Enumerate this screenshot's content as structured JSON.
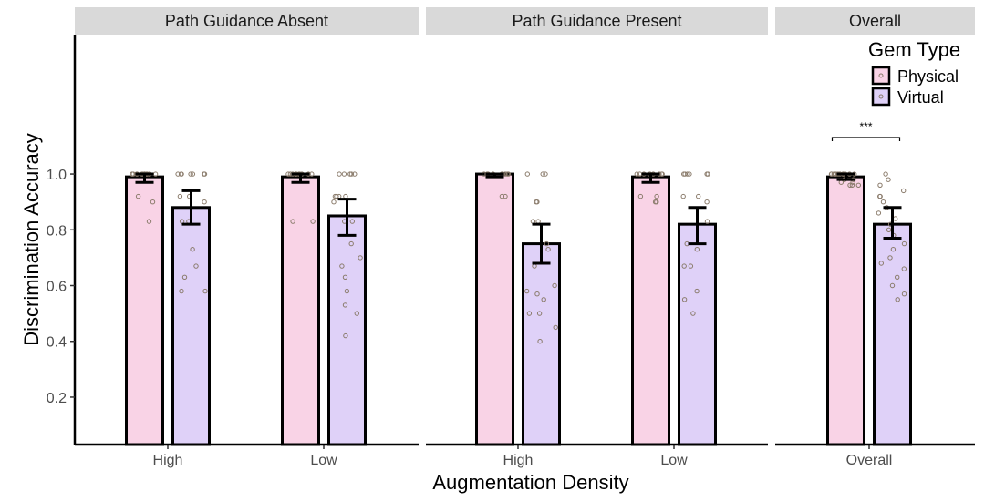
{
  "chart_data": {
    "type": "bar",
    "ylabel": "Discrimination Accuracy",
    "xlabel": "Augmentation Density",
    "ylim": [
      0.03,
      1.5
    ],
    "yticks": [
      "0.2",
      "0.4",
      "0.6",
      "0.8",
      "1.0"
    ],
    "legend": {
      "title": "Gem Type",
      "position": "top-right",
      "entries": [
        {
          "name": "Physical",
          "color": "#f9d3e6"
        },
        {
          "name": "Virtual",
          "color": "#dfd1f8"
        }
      ]
    },
    "panels": [
      {
        "strip": "Path Guidance Absent",
        "categories": [
          "High",
          "Low"
        ],
        "series": [
          {
            "name": "Physical",
            "values": [
              0.99,
              0.99
            ],
            "err_low": [
              0.97,
              0.97
            ],
            "err_high": [
              1.0,
              1.0
            ]
          },
          {
            "name": "Virtual",
            "values": [
              0.88,
              0.85
            ],
            "err_low": [
              0.82,
              0.78
            ],
            "err_high": [
              0.94,
              0.91
            ]
          }
        ],
        "points": {
          "Physical": [
            [
              1.0,
              1.0,
              1.0,
              1.0,
              1.0,
              1.0,
              1.0,
              1.0,
              1.0,
              1.0,
              0.92,
              0.9,
              0.83,
              1.0,
              1.0,
              1.0,
              1.0
            ],
            [
              1.0,
              1.0,
              1.0,
              1.0,
              1.0,
              1.0,
              1.0,
              1.0,
              1.0,
              0.83,
              0.83,
              1.0,
              1.0
            ]
          ],
          "Virtual": [
            [
              1.0,
              1.0,
              1.0,
              1.0,
              1.0,
              1.0,
              1.0,
              0.92,
              0.92,
              0.9,
              0.83,
              0.83,
              0.73,
              0.67,
              0.63,
              0.58,
              0.58
            ],
            [
              1.0,
              1.0,
              1.0,
              1.0,
              1.0,
              0.92,
              0.92,
              0.92,
              0.92,
              0.9,
              0.83,
              0.83,
              0.75,
              0.7,
              0.67,
              0.63,
              0.58,
              0.53,
              0.5,
              0.42
            ]
          ]
        }
      },
      {
        "strip": "Path Guidance Present",
        "categories": [
          "High",
          "Low"
        ],
        "series": [
          {
            "name": "Physical",
            "values": [
              1.0,
              0.99
            ],
            "err_low": [
              0.99,
              0.97
            ],
            "err_high": [
              1.0,
              1.0
            ]
          },
          {
            "name": "Virtual",
            "values": [
              0.75,
              0.82
            ],
            "err_low": [
              0.68,
              0.75
            ],
            "err_high": [
              0.82,
              0.88
            ]
          }
        ],
        "points": {
          "Physical": [
            [
              1.0,
              1.0,
              1.0,
              1.0,
              1.0,
              1.0,
              1.0,
              1.0,
              1.0,
              1.0,
              0.92,
              0.92
            ],
            [
              1.0,
              1.0,
              1.0,
              1.0,
              1.0,
              1.0,
              1.0,
              1.0,
              0.92,
              0.92,
              0.9,
              0.9
            ]
          ],
          "Virtual": [
            [
              1.0,
              1.0,
              1.0,
              0.9,
              0.9,
              0.83,
              0.83,
              0.75,
              0.73,
              0.67,
              0.6,
              0.58,
              0.57,
              0.55,
              0.5,
              0.5,
              0.45,
              0.4
            ],
            [
              1.0,
              1.0,
              1.0,
              1.0,
              1.0,
              1.0,
              0.92,
              0.92,
              0.9,
              0.83,
              0.75,
              0.73,
              0.67,
              0.67,
              0.58,
              0.55,
              0.5
            ]
          ]
        }
      },
      {
        "strip": "Overall",
        "categories": [
          "Overall"
        ],
        "series": [
          {
            "name": "Physical",
            "values": [
              0.99
            ],
            "err_low": [
              0.98
            ],
            "err_high": [
              1.0
            ]
          },
          {
            "name": "Virtual",
            "values": [
              0.82
            ],
            "err_low": [
              0.77
            ],
            "err_high": [
              0.88
            ]
          }
        ],
        "points": {
          "Physical": [
            [
              1.0,
              1.0,
              1.0,
              1.0,
              1.0,
              1.0,
              1.0,
              1.0,
              1.0,
              1.0,
              1.0,
              1.0,
              1.0,
              0.98,
              0.98,
              0.97,
              0.97,
              0.96,
              0.96,
              0.96
            ]
          ],
          "Virtual": [
            [
              1.0,
              0.98,
              0.96,
              0.94,
              0.92,
              0.92,
              0.9,
              0.88,
              0.86,
              0.84,
              0.82,
              0.8,
              0.78,
              0.75,
              0.73,
              0.7,
              0.68,
              0.66,
              0.63,
              0.6,
              0.57,
              0.55
            ]
          ]
        },
        "annotation": "***"
      }
    ]
  }
}
